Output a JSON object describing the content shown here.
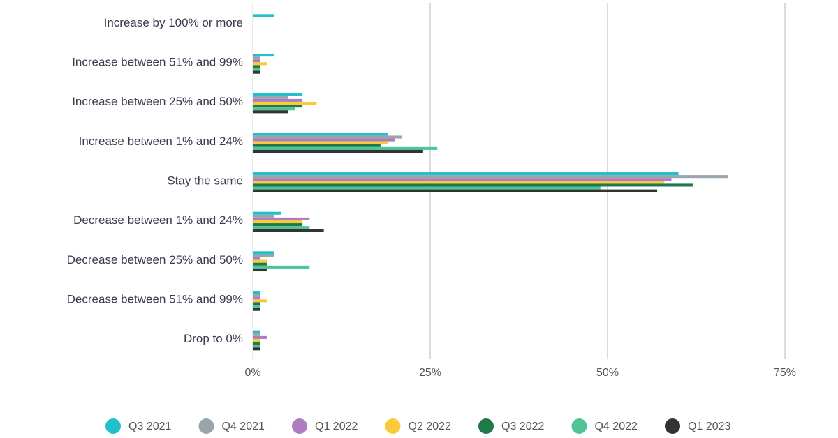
{
  "chart_data": {
    "type": "hbar",
    "categories": [
      "Increase by 100% or more",
      "Increase between 51% and 99%",
      "Increase between 25% and 50%",
      "Increase between 1% and 24%",
      "Stay the same",
      "Decrease between 1% and 24%",
      "Decrease between 25% and 50%",
      "Decrease between 51% and 99%",
      "Drop to 0%"
    ],
    "series": [
      {
        "name": "Q3 2021",
        "color": "#22bfcc",
        "values": [
          3,
          3,
          7,
          19,
          60,
          4,
          3,
          1,
          1
        ]
      },
      {
        "name": "Q4 2021",
        "color": "#98a5ad",
        "values": [
          0,
          1,
          5,
          21,
          67,
          3,
          3,
          1,
          1
        ]
      },
      {
        "name": "Q1 2022",
        "color": "#b07cc0",
        "values": [
          0,
          1,
          7,
          20,
          59,
          8,
          1,
          1,
          2
        ]
      },
      {
        "name": "Q2 2022",
        "color": "#fbc93a",
        "values": [
          0,
          2,
          9,
          19,
          58,
          7,
          2,
          2,
          1
        ]
      },
      {
        "name": "Q3 2022",
        "color": "#1f7a4a",
        "values": [
          0,
          1,
          7,
          18,
          62,
          7,
          2,
          1,
          1
        ]
      },
      {
        "name": "Q4 2022",
        "color": "#4ec497",
        "values": [
          0,
          1,
          6,
          26,
          49,
          8,
          8,
          1,
          1
        ]
      },
      {
        "name": "Q1 2023",
        "color": "#333333",
        "values": [
          0,
          1,
          5,
          24,
          57,
          10,
          2,
          1,
          1
        ]
      }
    ],
    "xlim": [
      0,
      75
    ],
    "xticks": [
      {
        "value": 0,
        "label": "0%"
      },
      {
        "value": 25,
        "label": "25%"
      },
      {
        "value": 50,
        "label": "50%"
      },
      {
        "value": 75,
        "label": "75%"
      }
    ],
    "grid": true
  }
}
